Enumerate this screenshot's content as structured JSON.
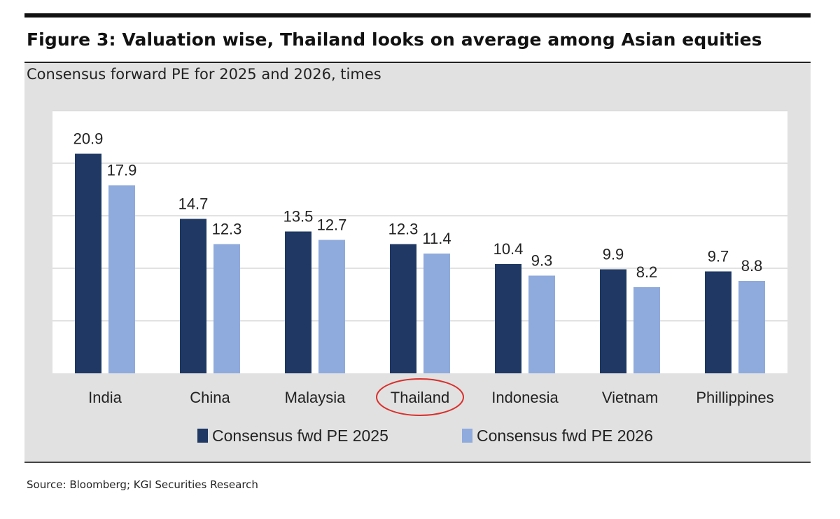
{
  "figure": {
    "title": "Figure 3: Valuation wise, Thailand looks on average among Asian equities",
    "subtitle": "Consensus forward PE for 2025 and 2026, times",
    "source": "Source: Bloomberg; KGI Securities Research"
  },
  "chart_data": {
    "type": "bar",
    "title": "Figure 3: Valuation wise, Thailand looks on average among Asian equities",
    "subtitle": "Consensus forward PE for 2025 and 2026, times",
    "categories": [
      "India",
      "China",
      "Malaysia",
      "Thailand",
      "Indonesia",
      "Vietnam",
      "Phillippines"
    ],
    "series": [
      {
        "name": "Consensus fwd PE 2025",
        "color": "#1f3864",
        "values": [
          20.9,
          14.7,
          13.5,
          12.3,
          10.4,
          9.9,
          9.7
        ]
      },
      {
        "name": "Consensus fwd PE 2026",
        "color": "#8faadc",
        "values": [
          17.9,
          12.3,
          12.7,
          11.4,
          9.3,
          8.2,
          8.8
        ]
      }
    ],
    "ylim": [
      0,
      25
    ],
    "yticks": [
      0,
      5,
      10,
      15,
      20,
      25
    ],
    "grid": true,
    "legend": "bottom",
    "highlight": {
      "category": "Thailand",
      "color": "#d9302c"
    },
    "xlabel": "",
    "ylabel": ""
  }
}
